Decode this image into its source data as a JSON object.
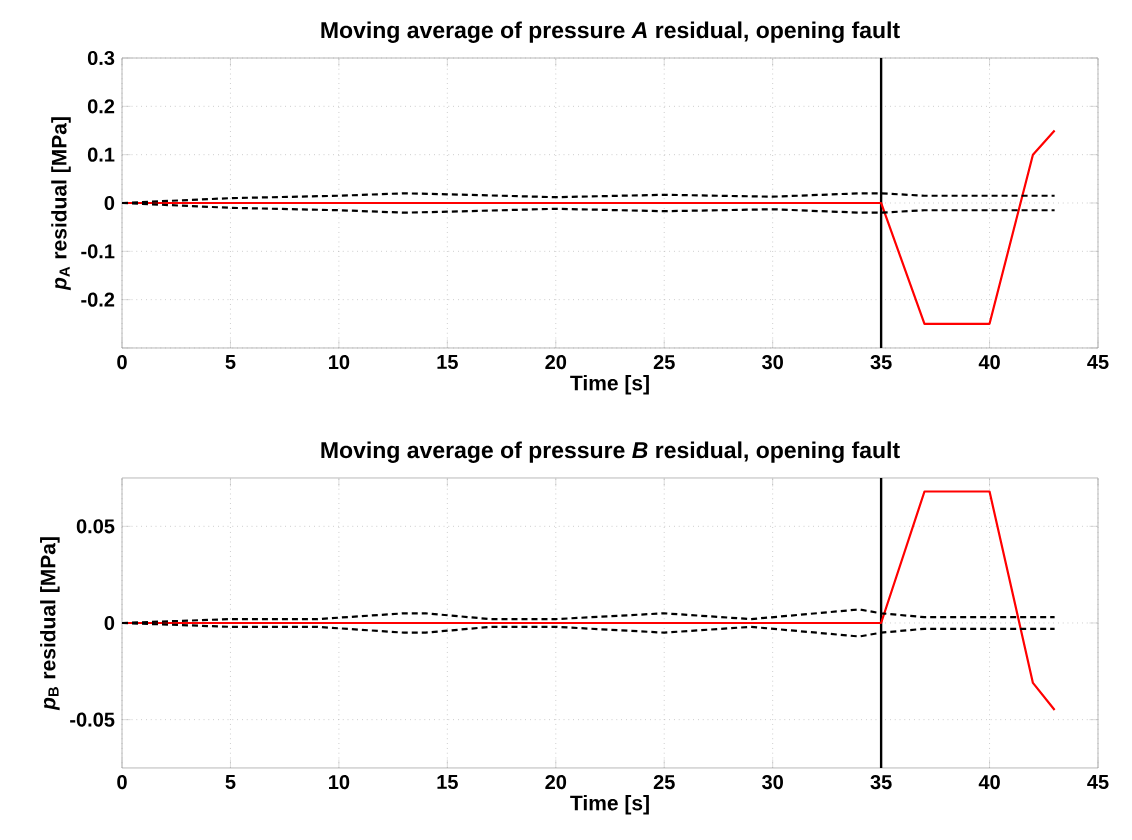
{
  "chart_data": [
    {
      "type": "line",
      "title": "Moving average of pressure *A* residual, opening fault",
      "xlabel": "Time [s]",
      "ylabel": "*p*$_{A}$ residual [MPa]",
      "xlim": [
        0,
        45
      ],
      "xticks": [
        0,
        5,
        10,
        15,
        20,
        25,
        30,
        35,
        40,
        45
      ],
      "ylim": [
        -0.3,
        0.3
      ],
      "yticks": [
        {
          "value": -0.3,
          "label": null
        },
        -0.2,
        -0.1,
        0,
        0.1,
        0.2,
        0.3
      ],
      "grid": true,
      "ref_lines": [
        {
          "axis": "x",
          "value": 35,
          "color": "#000000"
        }
      ],
      "series": [
        {
          "color": "#ff0000",
          "line_style": "solid",
          "x": [
            0,
            35,
            37,
            40,
            42,
            43
          ],
          "values": [
            0,
            0,
            -0.25,
            -0.25,
            0.1,
            0.15
          ]
        },
        {
          "color": "#000000",
          "line_style": "dashed",
          "x": [
            0,
            5,
            10,
            13,
            15,
            20,
            25,
            30,
            34,
            35,
            37,
            43
          ],
          "values": [
            0,
            0.01,
            0.015,
            0.02,
            0.018,
            0.012,
            0.017,
            0.013,
            0.02,
            0.02,
            0.015,
            0.015
          ]
        },
        {
          "color": "#000000",
          "line_style": "dashed",
          "x": [
            0,
            5,
            10,
            13,
            15,
            20,
            25,
            30,
            34,
            35,
            37,
            43
          ],
          "values": [
            0,
            -0.01,
            -0.015,
            -0.02,
            -0.018,
            -0.012,
            -0.017,
            -0.013,
            -0.02,
            -0.02,
            -0.015,
            -0.015
          ]
        }
      ]
    },
    {
      "type": "line",
      "title": "Moving average of pressure *B* residual, opening fault",
      "xlabel": "Time [s]",
      "ylabel": "*p*$_{B}$ residual [MPa]",
      "xlim": [
        0,
        45
      ],
      "xticks": [
        0,
        5,
        10,
        15,
        20,
        25,
        30,
        35,
        40,
        45
      ],
      "ylim": [
        -0.075,
        0.075
      ],
      "yticks": [
        -0.05,
        0,
        0.05
      ],
      "grid": true,
      "ref_lines": [
        {
          "axis": "x",
          "value": 35,
          "color": "#000000"
        }
      ],
      "series": [
        {
          "color": "#ff0000",
          "line_style": "solid",
          "x": [
            0,
            35,
            37,
            40,
            42,
            43
          ],
          "values": [
            0,
            0,
            0.068,
            0.068,
            -0.031,
            -0.045
          ]
        },
        {
          "color": "#000000",
          "line_style": "dashed",
          "x": [
            0,
            5,
            9,
            13,
            14,
            17,
            20,
            25,
            29,
            34,
            35,
            37,
            43
          ],
          "values": [
            0,
            0.002,
            0.002,
            0.005,
            0.005,
            0.002,
            0.002,
            0.005,
            0.002,
            0.007,
            0.005,
            0.003,
            0.003
          ]
        },
        {
          "color": "#000000",
          "line_style": "dashed",
          "x": [
            0,
            5,
            9,
            13,
            14,
            17,
            20,
            25,
            29,
            34,
            35,
            37,
            43
          ],
          "values": [
            0,
            -0.002,
            -0.002,
            -0.005,
            -0.005,
            -0.002,
            -0.002,
            -0.005,
            -0.002,
            -0.007,
            -0.005,
            -0.003,
            -0.003
          ]
        }
      ]
    }
  ]
}
